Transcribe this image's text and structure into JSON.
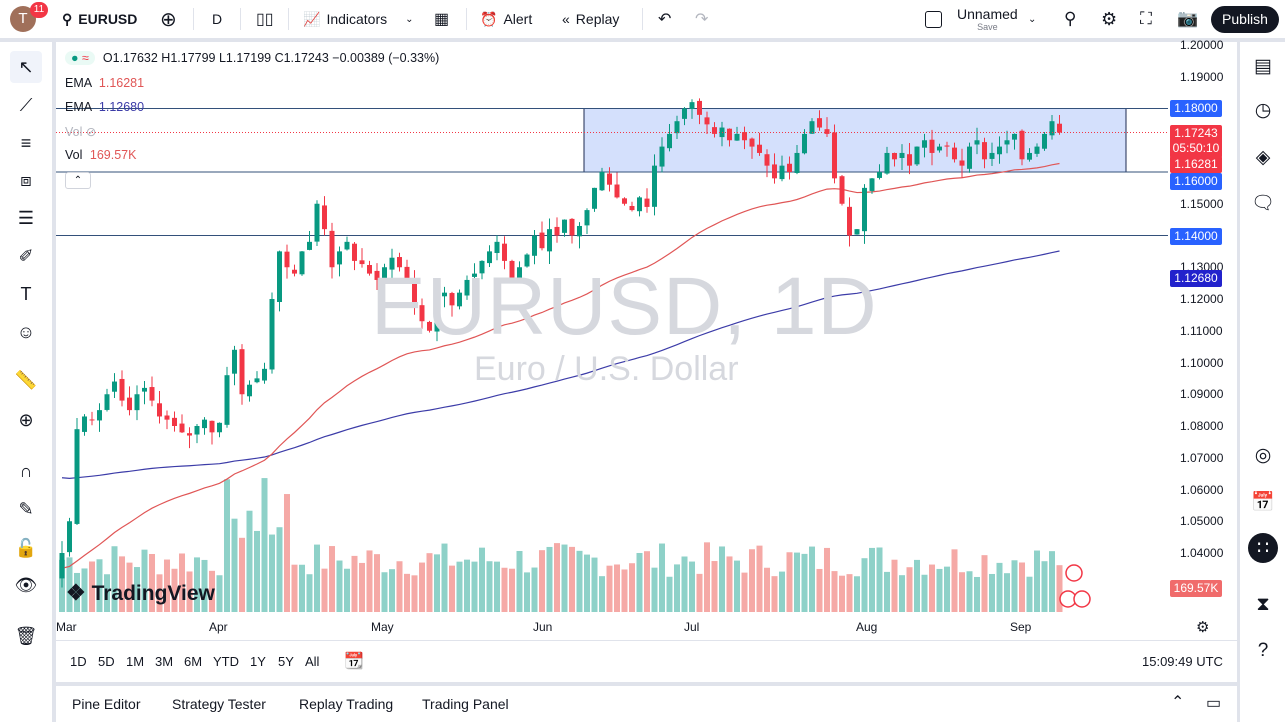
{
  "toolbar": {
    "avatar_letter": "T",
    "notifications": "11",
    "symbol": "EURUSD",
    "interval": "D",
    "indicators": "Indicators",
    "alert": "Alert",
    "replay": "Replay",
    "layout_name": "Unnamed",
    "save": "Save",
    "publish": "Publish"
  },
  "legend": {
    "ohlc": "O1.17632 H1.17799 L1.17199 C1.17243 −0.00389 (−0.33%)",
    "ema1_label": "EMA",
    "ema1_value": "1.16281",
    "ema2_label": "EMA",
    "ema2_value": "1.12680",
    "vol_hidden_label": "Vol",
    "vol_label": "Vol",
    "vol_value": "169.57K"
  },
  "watermark": {
    "title": "EURUSD, 1D",
    "subtitle": "Euro / U.S. Dollar"
  },
  "logo": "TradingView",
  "price_axis": {
    "ticks": [
      "1.20000",
      "1.19000",
      "1.15000",
      "1.13000",
      "1.12000",
      "1.11000",
      "1.10000",
      "1.09000",
      "1.08000",
      "1.07000",
      "1.06000",
      "1.05000",
      "1.04000"
    ],
    "labels": {
      "level_118": "1.18000",
      "last": "1.17243",
      "countdown": "05:50:10",
      "ema1": "1.16281",
      "level_116": "1.16000",
      "level_114": "1.14000",
      "ema2": "1.12680",
      "volume": "169.57K"
    }
  },
  "time_axis": [
    "Mar",
    "Apr",
    "May",
    "Jun",
    "Jul",
    "Aug",
    "Sep"
  ],
  "ranges": [
    "1D",
    "5D",
    "1M",
    "3M",
    "6M",
    "YTD",
    "1Y",
    "5Y",
    "All"
  ],
  "clock": "15:09:49 UTC",
  "bottom_tabs": [
    "Pine Editor",
    "Strategy Tester",
    "Replay Trading",
    "Trading Panel"
  ],
  "colors": {
    "up": "#089981",
    "down": "#f23645",
    "ema1": "#e05656",
    "ema2": "#3c3ca8",
    "level": "#2962ff",
    "box": "#c9d8fb"
  },
  "chart": {
    "horizontal_levels": [
      1.18,
      1.16,
      1.14
    ],
    "range_box": {
      "top": 1.18,
      "bottom": 1.16,
      "from": "Jun",
      "to": "Sep"
    },
    "closes": [
      1.04,
      1.05,
      1.079,
      1.083,
      1.082,
      1.085,
      1.09,
      1.094,
      1.088,
      1.085,
      1.09,
      1.092,
      1.088,
      1.083,
      1.082,
      1.08,
      1.078,
      1.077,
      1.08,
      1.082,
      1.078,
      1.081,
      1.096,
      1.104,
      1.09,
      1.093,
      1.095,
      1.098,
      1.12,
      1.135,
      1.13,
      1.128,
      1.135,
      1.138,
      1.15,
      1.142,
      1.13,
      1.135,
      1.138,
      1.132,
      1.131,
      1.128,
      1.126,
      1.13,
      1.133,
      1.13,
      1.126,
      1.118,
      1.113,
      1.11,
      1.12,
      1.122,
      1.118,
      1.122,
      1.126,
      1.128,
      1.132,
      1.135,
      1.138,
      1.132,
      1.125,
      1.13,
      1.134,
      1.14,
      1.136,
      1.142,
      1.14,
      1.145,
      1.14,
      1.143,
      1.148,
      1.155,
      1.16,
      1.156,
      1.152,
      1.15,
      1.148,
      1.152,
      1.149,
      1.162,
      1.168,
      1.172,
      1.176,
      1.18,
      1.182,
      1.178,
      1.175,
      1.172,
      1.174,
      1.17,
      1.172,
      1.17,
      1.168,
      1.166,
      1.162,
      1.158,
      1.162,
      1.16,
      1.166,
      1.172,
      1.176,
      1.174,
      1.172,
      1.158,
      1.15,
      1.14,
      1.142,
      1.155,
      1.158,
      1.16,
      1.166,
      1.164,
      1.166,
      1.162,
      1.168,
      1.17,
      1.166,
      1.168,
      1.168,
      1.164,
      1.162,
      1.168,
      1.17,
      1.164,
      1.166,
      1.168,
      1.17,
      1.172,
      1.164,
      1.166,
      1.168,
      1.172,
      1.176,
      1.17243
    ]
  }
}
